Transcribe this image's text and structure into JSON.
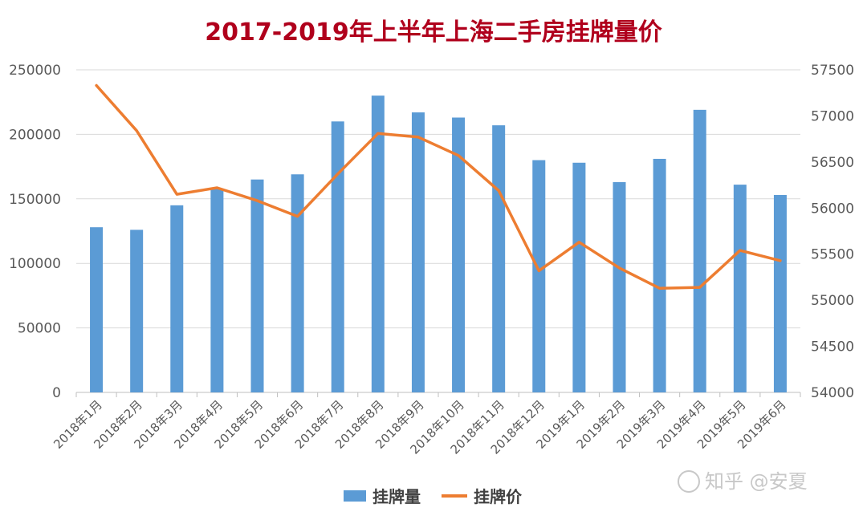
{
  "chart_data": {
    "type": "bar",
    "title": "2017-2019年上半年上海二手房挂牌量价",
    "categories": [
      "2018年1月",
      "2018年2月",
      "2018年3月",
      "2018年4月",
      "2018年5月",
      "2018年6月",
      "2018年7月",
      "2018年8月",
      "2018年9月",
      "2018年10月",
      "2018年11月",
      "2018年12月",
      "2019年1月",
      "2019年2月",
      "2019年3月",
      "2019年4月",
      "2019年5月",
      "2019年6月"
    ],
    "series": [
      {
        "name": "挂牌量",
        "type": "bar",
        "axis": "left",
        "color": "#5b9bd5",
        "values": [
          128000,
          126000,
          145000,
          158000,
          165000,
          169000,
          210000,
          230000,
          217000,
          213000,
          207000,
          180000,
          178000,
          163000,
          181000,
          219000,
          161000,
          153000
        ]
      },
      {
        "name": "挂牌价",
        "type": "line",
        "axis": "right",
        "color": "#ed7d31",
        "values": [
          57330,
          56840,
          56150,
          56220,
          56080,
          55910,
          56370,
          56810,
          56770,
          56570,
          56190,
          55320,
          55630,
          55350,
          55130,
          55140,
          55540,
          55430
        ]
      }
    ],
    "yaxis_left": {
      "min": 0,
      "max": 250000,
      "ticks": [
        "0",
        "50000",
        "100000",
        "150000",
        "200000",
        "250000"
      ]
    },
    "yaxis_right": {
      "min": 54000,
      "max": 57500,
      "ticks": [
        "54000",
        "54500",
        "55000",
        "55500",
        "56000",
        "56500",
        "57000",
        "57500"
      ]
    },
    "grid": true,
    "legend_position": "bottom"
  },
  "watermark": "知乎 @安夏"
}
